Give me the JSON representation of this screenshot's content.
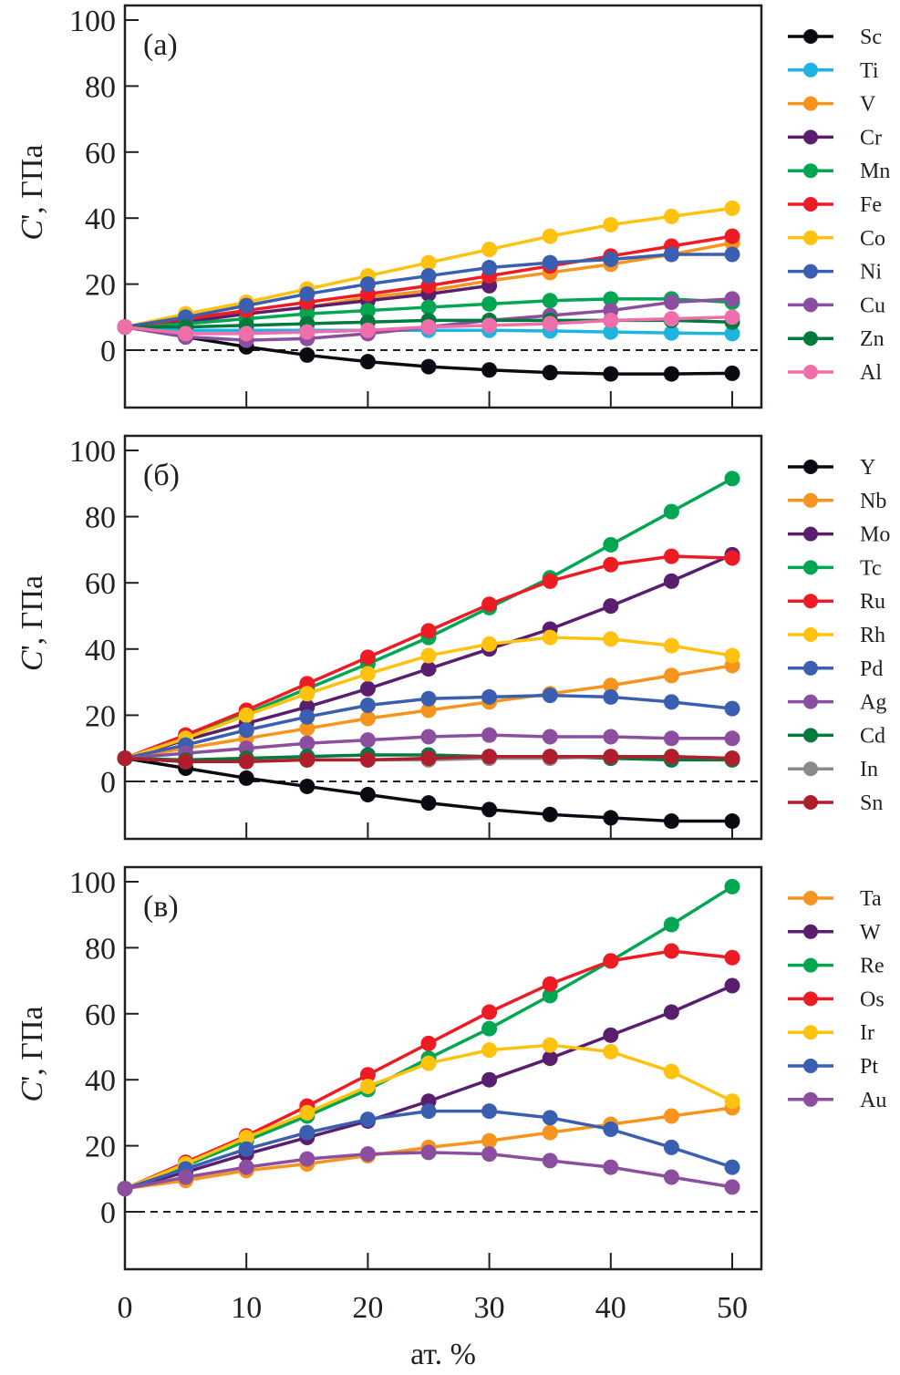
{
  "chart_data": {
    "type": "line",
    "xlabel": "ат. %",
    "ylabel": "C', ГПа",
    "ylabel_symbol": "C",
    "ylabel_rest": "', ГПа",
    "x_ticks": [
      "0",
      "10",
      "20",
      "30",
      "40",
      "50"
    ],
    "y_ticks": [
      "0",
      "20",
      "40",
      "60",
      "80",
      "100"
    ],
    "xlim": [
      0,
      52
    ],
    "ylim": [
      -17,
      102
    ],
    "reference_line": {
      "y": 0,
      "style": "dashed"
    },
    "x": [
      0,
      5,
      10,
      15,
      20,
      25,
      30,
      35,
      40,
      45,
      50
    ],
    "panels": [
      {
        "label": "(a)",
        "legend_position": "right",
        "series": [
          {
            "name": "Sc",
            "color": "#0a0a12",
            "values": [
              7,
              4,
              1,
              -1.5,
              -3.5,
              -5,
              -6,
              -6.8,
              -7.2,
              -7.2,
              -7
            ]
          },
          {
            "name": "Ti",
            "color": "#1eb4e0",
            "values": [
              7,
              6,
              6,
              6,
              6,
              6,
              6,
              5.8,
              5.5,
              5.2,
              5
            ]
          },
          {
            "name": "V",
            "color": "#f7941e",
            "values": [
              7,
              9,
              11,
              13,
              16,
              18,
              21,
              23.5,
              26,
              29,
              32.5
            ]
          },
          {
            "name": "Cr",
            "color": "#5a1e6e",
            "values": [
              7,
              8.5,
              11,
              13,
              15,
              17,
              19.5
            ]
          },
          {
            "name": "Mn",
            "color": "#00a651",
            "values": [
              7,
              8,
              9.5,
              11,
              12,
              13,
              14,
              15,
              15.5,
              15.5,
              14.5
            ]
          },
          {
            "name": "Fe",
            "color": "#ed1c24",
            "values": [
              7,
              9.5,
              12,
              14.5,
              17,
              19.5,
              22.5,
              25.5,
              28.5,
              31.5,
              34.5
            ]
          },
          {
            "name": "Co",
            "color": "#ffc20e",
            "values": [
              7,
              11,
              14.5,
              18.5,
              22.5,
              26.5,
              30.5,
              34.5,
              38,
              40.5,
              43
            ]
          },
          {
            "name": "Ni",
            "color": "#3a5fb0",
            "values": [
              7,
              10,
              13.5,
              17,
              20,
              22.5,
              25,
              26.5,
              27.5,
              29,
              29
            ]
          },
          {
            "name": "Cu",
            "color": "#8c4fa0",
            "values": [
              7,
              4,
              3,
              3.5,
              5,
              7,
              9,
              10.5,
              12,
              14.5,
              15.5
            ]
          },
          {
            "name": "Zn",
            "color": "#007a3d",
            "values": [
              7,
              7,
              7.5,
              8,
              8.5,
              9,
              9,
              9,
              9,
              9,
              8.5
            ]
          },
          {
            "name": "Al",
            "color": "#f06eaa",
            "values": [
              7,
              5,
              5,
              5.5,
              6,
              7,
              7.5,
              8,
              9,
              9.5,
              10
            ]
          }
        ]
      },
      {
        "label": "(б)",
        "legend_position": "right",
        "series": [
          {
            "name": "Y",
            "color": "#0a0a12",
            "values": [
              7,
              4,
              1,
              -1.5,
              -4,
              -6.5,
              -8.5,
              -10,
              -11,
              -12,
              -12
            ]
          },
          {
            "name": "Nb",
            "color": "#f7941e",
            "values": [
              7,
              10,
              13,
              16,
              19,
              21.5,
              24,
              26.5,
              29,
              32,
              35
            ]
          },
          {
            "name": "Mo",
            "color": "#5a1e6e",
            "values": [
              7,
              12.5,
              17.5,
              22.5,
              28,
              34,
              40,
              46,
              53,
              60.5,
              68.5
            ]
          },
          {
            "name": "Tc",
            "color": "#00a651",
            "values": [
              7,
              13.5,
              20.5,
              28,
              35.5,
              43.5,
              52.5,
              61.5,
              71.5,
              81.5,
              91.5
            ]
          },
          {
            "name": "Ru",
            "color": "#ed1c24",
            "values": [
              7,
              14,
              21.5,
              29.5,
              37.5,
              45.5,
              53.5,
              60.5,
              65.5,
              68,
              67.5
            ]
          },
          {
            "name": "Rh",
            "color": "#ffc20e",
            "values": [
              7,
              13,
              20,
              26.5,
              32.5,
              38,
              41.5,
              43.5,
              43,
              41,
              38
            ]
          },
          {
            "name": "Pd",
            "color": "#3a5fb0",
            "values": [
              7,
              11,
              15.5,
              19.5,
              23,
              25,
              25.5,
              26,
              25.5,
              24,
              22
            ]
          },
          {
            "name": "Ag",
            "color": "#8c4fa0",
            "values": [
              7,
              8.5,
              10,
              11.5,
              12.5,
              13.5,
              14,
              13.5,
              13.5,
              13,
              13
            ]
          },
          {
            "name": "Cd",
            "color": "#007a3d",
            "values": [
              7,
              6.5,
              7,
              7.5,
              8,
              8,
              7.5,
              7.5,
              7,
              6.5,
              6.5
            ]
          },
          {
            "name": "In",
            "color": "#8a8a8a",
            "values": [
              7,
              6,
              6,
              6.5,
              6.5,
              6.5,
              7,
              7,
              7.5,
              7.5,
              7
            ]
          },
          {
            "name": "Sn",
            "color": "#b01e2d",
            "values": [
              7,
              6,
              6,
              6.5,
              6.5,
              7,
              7.5,
              7.5,
              7.5,
              7.5,
              7
            ]
          }
        ]
      },
      {
        "label": "(в)",
        "legend_position": "right",
        "series": [
          {
            "name": "Ta",
            "color": "#f7941e",
            "values": [
              7,
              9.5,
              12.5,
              14.5,
              17,
              19.5,
              21.5,
              24,
              26.5,
              29,
              31.5
            ]
          },
          {
            "name": "W",
            "color": "#5a1e6e",
            "values": [
              7,
              12,
              17.5,
              22.5,
              27.5,
              33.5,
              40,
              46.5,
              53.5,
              60.5,
              68.5
            ]
          },
          {
            "name": "Re",
            "color": "#00a651",
            "values": [
              7,
              14,
              21.5,
              29,
              37,
              46.5,
              55.5,
              65.5,
              76,
              87,
              98.5
            ]
          },
          {
            "name": "Os",
            "color": "#ed1c24",
            "values": [
              7,
              15,
              23,
              32,
              41.5,
              51,
              60.5,
              69,
              76,
              79,
              77
            ]
          },
          {
            "name": "Ir",
            "color": "#ffc20e",
            "values": [
              7,
              14.5,
              22.5,
              30,
              38,
              45,
              49,
              50.5,
              48.5,
              42.5,
              33.5
            ]
          },
          {
            "name": "Pt",
            "color": "#3a5fb0",
            "values": [
              7,
              13,
              19,
              24,
              28,
              30.5,
              30.5,
              28.5,
              25,
              19.5,
              13.5
            ]
          },
          {
            "name": "Au",
            "color": "#8c4fa0",
            "values": [
              7,
              10.5,
              13.5,
              16,
              17.5,
              18,
              17.5,
              15.5,
              13.5,
              10.5,
              7.5
            ]
          }
        ]
      }
    ]
  }
}
